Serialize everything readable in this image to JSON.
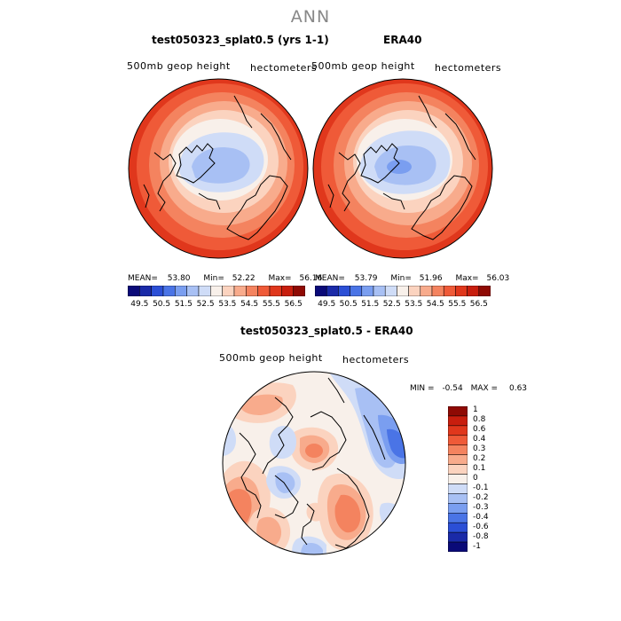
{
  "title": "ANN",
  "panels": [
    {
      "title": "test050323_splat0.5 (yrs 1-1)",
      "variable": "500mb geop height",
      "units": "hectometers",
      "stats": {
        "mean_label": "MEAN=",
        "mean": "53.80",
        "min_label": "Min=",
        "min": "52.22",
        "max_label": "Max=",
        "max": "56.16"
      }
    },
    {
      "title": "ERA40",
      "variable": "500mb geop height",
      "units": "hectometers",
      "stats": {
        "mean_label": "MEAN=",
        "mean": "53.79",
        "min_label": "Min=",
        "min": "51.96",
        "max_label": "Max=",
        "max": "56.03"
      }
    },
    {
      "title": "test050323_splat0.5 - ERA40",
      "variable": "500mb geop height",
      "units": "hectometers",
      "stats": {
        "min_label": "MIN =",
        "min": "-0.54",
        "max_label": "MAX =",
        "max": "0.63"
      }
    }
  ],
  "colorbar_top": {
    "labels": [
      "49.5",
      "50.5",
      "51.5",
      "52.5",
      "53.5",
      "54.5",
      "55.5",
      "56.5"
    ],
    "colors": [
      "#0a0a78",
      "#1a2aa8",
      "#2b4fd6",
      "#4a74e6",
      "#7a9ef0",
      "#a8c0f4",
      "#cfdcf7",
      "#f8f0ea",
      "#fbd3bf",
      "#f8ab8c",
      "#f4835f",
      "#ef5a38",
      "#e0371c",
      "#c81e0e",
      "#8f0a04"
    ]
  },
  "colorbar_diff": {
    "labels": [
      "1",
      "0.8",
      "0.6",
      "0.4",
      "0.3",
      "0.2",
      "0.1",
      "0",
      "-0.1",
      "-0.2",
      "-0.3",
      "-0.4",
      "-0.6",
      "-0.8",
      "-1"
    ],
    "colors": [
      "#8f0a04",
      "#c81e0e",
      "#e0371c",
      "#ef5a38",
      "#f4835f",
      "#f8ab8c",
      "#fbd3bf",
      "#f8f0ea",
      "#cfdcf7",
      "#a8c0f4",
      "#7a9ef0",
      "#4a74e6",
      "#2b4fd6",
      "#1a2aa8",
      "#0a0a78"
    ]
  }
}
